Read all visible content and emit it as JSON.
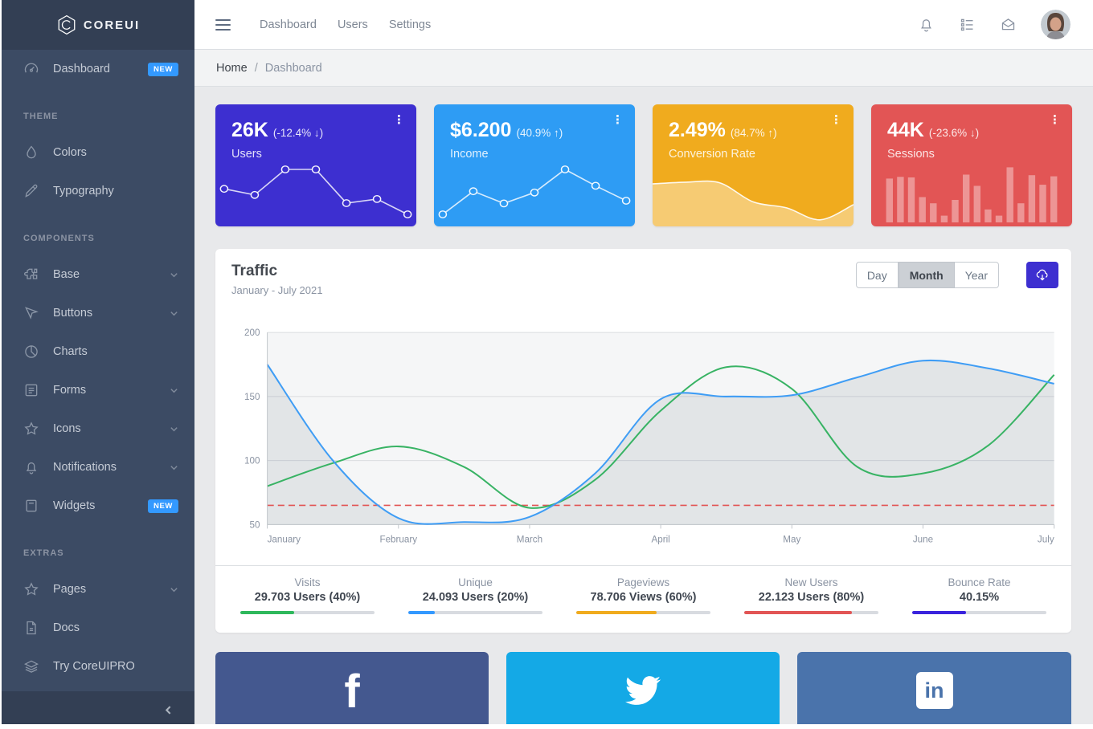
{
  "app": {
    "brand": "COREUI",
    "accent": "#321fdb"
  },
  "colors": {
    "sidebar_bg": "#3c4b64",
    "sidebar_dark": "#333f54",
    "body_bg": "#e8e9eb",
    "card_users": "#3d2fd0",
    "card_income": "#2e9cf4",
    "card_conversion": "#f0ab1e",
    "card_sessions": "#e25555",
    "success": "#2eb85c",
    "info": "#3399ff",
    "warning": "#f0ab1e",
    "danger": "#e25555",
    "primary": "#3a23dd"
  },
  "sidebar": {
    "brand": "COREUI",
    "collapse_icon": "chevron-left",
    "sections": [
      {
        "title": "",
        "items": [
          {
            "label": "Dashboard",
            "icon": "speedometer",
            "badge": "NEW"
          }
        ]
      },
      {
        "title": "THEME",
        "items": [
          {
            "label": "Colors",
            "icon": "drop"
          },
          {
            "label": "Typography",
            "icon": "pencil"
          }
        ]
      },
      {
        "title": "COMPONENTS",
        "items": [
          {
            "label": "Base",
            "icon": "puzzle",
            "chevron": true
          },
          {
            "label": "Buttons",
            "icon": "cursor",
            "chevron": true
          },
          {
            "label": "Charts",
            "icon": "chart-pie"
          },
          {
            "label": "Forms",
            "icon": "notes",
            "chevron": true
          },
          {
            "label": "Icons",
            "icon": "star",
            "chevron": true
          },
          {
            "label": "Notifications",
            "icon": "bell",
            "chevron": true
          },
          {
            "label": "Widgets",
            "icon": "calculator",
            "badge": "NEW"
          }
        ]
      },
      {
        "title": "EXTRAS",
        "items": [
          {
            "label": "Pages",
            "icon": "star",
            "chevron": true
          },
          {
            "label": "Docs",
            "icon": "document"
          },
          {
            "label": "Try CoreUIPRO",
            "icon": "layers"
          }
        ]
      }
    ]
  },
  "header": {
    "nav": [
      {
        "label": "Dashboard"
      },
      {
        "label": "Users"
      },
      {
        "label": "Settings"
      }
    ],
    "icons": [
      "bell-icon",
      "list-icon",
      "envelope-open-icon"
    ],
    "breadcrumb": {
      "root": "Home",
      "separator": "/",
      "current": "Dashboard"
    }
  },
  "stat_cards": [
    {
      "value": "26K",
      "delta": "(-12.4% ↓)",
      "label": "Users",
      "color": "#3d2fd0",
      "menu_icon": "vertical-dots"
    },
    {
      "value": "$6.200",
      "delta": "(40.9% ↑)",
      "label": "Income",
      "color": "#2e9cf4",
      "menu_icon": "vertical-dots"
    },
    {
      "value": "2.49%",
      "delta": "(84.7% ↑)",
      "label": "Conversion Rate",
      "color": "#f0ab1e",
      "menu_icon": "vertical-dots"
    },
    {
      "value": "44K",
      "delta": "(-23.6% ↓)",
      "label": "Sessions",
      "color": "#e25555",
      "menu_icon": "vertical-dots"
    }
  ],
  "traffic": {
    "title": "Traffic",
    "subtitle": "January - July 2021",
    "range_buttons": [
      "Day",
      "Month",
      "Year"
    ],
    "active_range": "Month",
    "download_icon": "cloud-download"
  },
  "footer_stats": [
    {
      "label": "Visits",
      "value": "29.703 Users (40%)",
      "percent": 40,
      "color": "#2eb85c"
    },
    {
      "label": "Unique",
      "value": "24.093 Users (20%)",
      "percent": 20,
      "color": "#3399ff"
    },
    {
      "label": "Pageviews",
      "value": "78.706 Views (60%)",
      "percent": 60,
      "color": "#f0ab1e"
    },
    {
      "label": "New Users",
      "value": "22.123 Users (80%)",
      "percent": 80,
      "color": "#e25555"
    },
    {
      "label": "Bounce Rate",
      "value": "40.15%",
      "percent": 40.15,
      "color": "#3a23dd"
    }
  ],
  "social_cards": [
    {
      "name": "facebook",
      "color": "#44588f"
    },
    {
      "name": "twitter",
      "color": "#14a9e6"
    },
    {
      "name": "linkedin",
      "color": "#4a73ab"
    }
  ],
  "chart_data": [
    {
      "id": "main-chart",
      "type": "line",
      "title": "Traffic",
      "subtitle": "January - July 2021",
      "x_labels": [
        "January",
        "February",
        "March",
        "April",
        "May",
        "June",
        "July"
      ],
      "samples_per_month": 2,
      "ylim": [
        50,
        200
      ],
      "yticks": [
        50,
        100,
        150,
        200
      ],
      "grid": true,
      "legend": false,
      "series": [
        {
          "name": "traffic-current",
          "color": "#3f9df5",
          "fill": "rgba(60,75,100,0.10)",
          "values": [
            175,
            100,
            55,
            52,
            56,
            90,
            148,
            150,
            151,
            165,
            178,
            172,
            160
          ]
        },
        {
          "name": "traffic-previous",
          "color": "#38b364",
          "values": [
            80,
            98,
            111,
            95,
            63,
            85,
            139,
            173,
            156,
            95,
            90,
            112,
            167
          ]
        },
        {
          "name": "threshold",
          "color": "#e25555",
          "dashed": true,
          "constant": 65
        }
      ]
    },
    {
      "id": "spark-users",
      "type": "line",
      "markers": true,
      "color": "#3d2fd0",
      "values": [
        65,
        59,
        84,
        84,
        51,
        55,
        40
      ]
    },
    {
      "id": "spark-income",
      "type": "line",
      "markers": true,
      "color": "#2e9cf4",
      "values": [
        1,
        18,
        9,
        17,
        34,
        22,
        11
      ]
    },
    {
      "id": "spark-conversion",
      "type": "area",
      "color": "#f0ab1e",
      "values": [
        78,
        81,
        80,
        45,
        34,
        12,
        40
      ]
    },
    {
      "id": "spark-sessions",
      "type": "bar",
      "color": "#e25555",
      "values": [
        78,
        81,
        80,
        45,
        34,
        12,
        40,
        85,
        65,
        23,
        12,
        98,
        34,
        84,
        67,
        82
      ]
    }
  ]
}
